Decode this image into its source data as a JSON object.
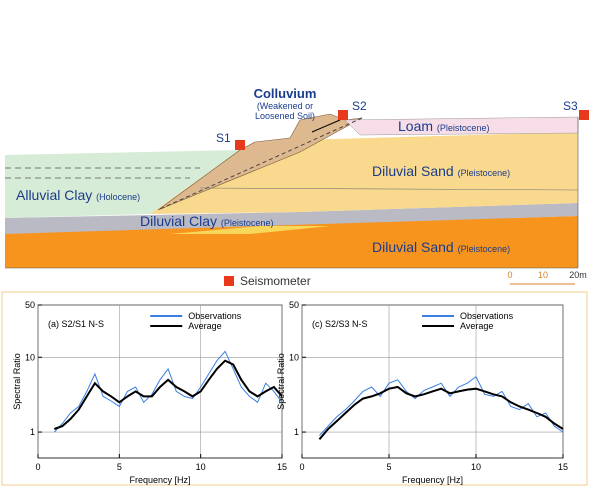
{
  "diagram": {
    "colluvium": "Colluvium",
    "colluvium_note": [
      "(Weakened or",
      "Loosened Soil)"
    ],
    "stations": [
      "S1",
      "S2",
      "S3"
    ],
    "layers": [
      {
        "name": "Loam",
        "age": "(Pleistocene)"
      },
      {
        "name": "Diluvial Sand",
        "age": "(Pleistocene)"
      },
      {
        "name": "Alluvial Clay",
        "age": "(Holocene)"
      },
      {
        "name": "Diluvial Clay",
        "age": "(Pleistocene)"
      },
      {
        "name": "Diluvial Sand",
        "age": "(Pleistocene)"
      }
    ],
    "legend": "Seismometer",
    "scale": [
      "0",
      "10",
      "20m"
    ]
  },
  "chart_data": [
    {
      "type": "line",
      "title": "(a) S2/S1 N-S",
      "xlabel": "Frequency [Hz]",
      "ylabel": "Spectral Ratio",
      "x": [
        1,
        1.5,
        2,
        2.5,
        3,
        3.5,
        4,
        4.5,
        5,
        5.5,
        6,
        6.5,
        7,
        7.5,
        8,
        8.5,
        9,
        9.5,
        10,
        10.5,
        11,
        11.5,
        12,
        12.5,
        13,
        13.5,
        14,
        14.5,
        15
      ],
      "series": [
        {
          "name": "Observations",
          "color": "#3a7de0",
          "values": [
            1.0,
            1.3,
            1.8,
            2.2,
            3.5,
            6,
            3,
            2.6,
            2.2,
            3.5,
            4,
            2.5,
            3.2,
            5,
            7,
            3.5,
            3,
            2.8,
            4,
            6,
            9,
            12,
            7,
            4,
            3,
            2.5,
            4.5,
            3.5,
            2.5
          ]
        },
        {
          "name": "Average",
          "color": "#000000",
          "values": [
            1.1,
            1.2,
            1.5,
            2,
            3,
            4.5,
            3.5,
            3,
            2.5,
            3,
            3.5,
            3,
            3,
            4,
            5,
            4,
            3.5,
            3,
            3.5,
            5,
            7,
            9,
            8,
            5,
            3.5,
            3,
            3.5,
            4,
            3
          ]
        }
      ],
      "xlim": [
        0,
        15
      ],
      "xticks": [
        0,
        5,
        10,
        15
      ],
      "ylim": [
        0.45,
        50
      ],
      "yticks": [
        1,
        10,
        50
      ],
      "log_y": true,
      "grid": true
    },
    {
      "type": "line",
      "title": "(c) S2/S3 N-S",
      "xlabel": "Frequency [Hz]",
      "ylabel": "Spectral Ratio",
      "x": [
        1,
        1.5,
        2,
        2.5,
        3,
        3.5,
        4,
        4.5,
        5,
        5.5,
        6,
        6.5,
        7,
        7.5,
        8,
        8.5,
        9,
        9.5,
        10,
        10.5,
        11,
        11.5,
        12,
        12.5,
        13,
        13.5,
        14,
        14.5,
        15
      ],
      "series": [
        {
          "name": "Observations",
          "color": "#3a7de0",
          "values": [
            0.9,
            1.2,
            1.6,
            2,
            2.6,
            3.5,
            4,
            3,
            4.5,
            5,
            3.5,
            2.8,
            3.6,
            4,
            4.5,
            3,
            4,
            4.5,
            5.5,
            3.2,
            3,
            3.5,
            2.2,
            2,
            2.4,
            1.6,
            1.8,
            1.2,
            1.0
          ]
        },
        {
          "name": "Average",
          "color": "#000000",
          "values": [
            0.8,
            1.1,
            1.4,
            1.8,
            2.3,
            2.8,
            3,
            3.3,
            3.8,
            4,
            3.3,
            3,
            3.2,
            3.5,
            3.8,
            3.3,
            3.5,
            3.7,
            3.8,
            3.5,
            3.2,
            3,
            2.5,
            2.2,
            2,
            1.8,
            1.6,
            1.3,
            1.1
          ]
        }
      ],
      "xlim": [
        0,
        15
      ],
      "xticks": [
        0,
        5,
        10,
        15
      ],
      "ylim": [
        0.45,
        50
      ],
      "yticks": [
        1,
        10,
        50
      ],
      "log_y": true,
      "grid": true
    }
  ]
}
